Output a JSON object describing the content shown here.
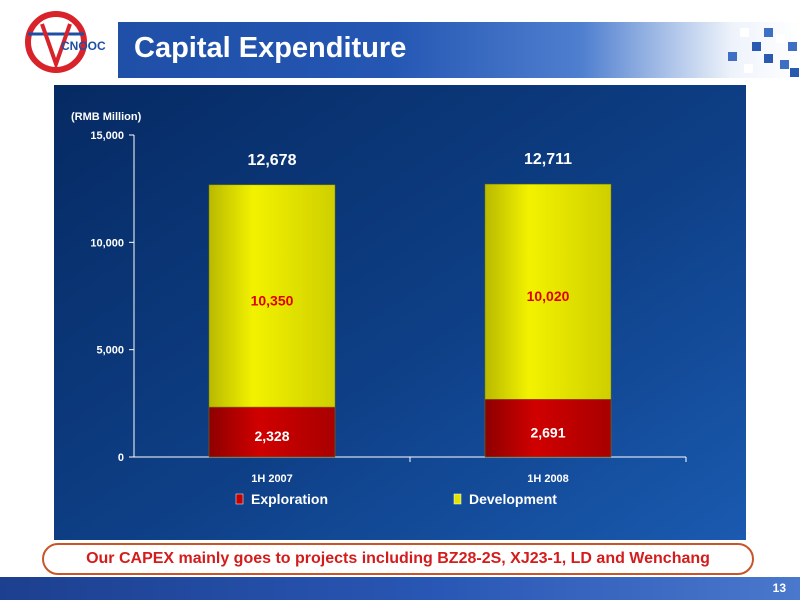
{
  "page": {
    "title": "Capital Expenditure",
    "footnote": "Our CAPEX mainly goes to projects including BZ28-2S, XJ23-1, LD and Wenchang",
    "page_number": "13",
    "logo_text": "CNOOC"
  },
  "colors": {
    "exploration": "#c40000",
    "development": "#e3e300",
    "total_label": "#ffffff",
    "segment_label": "#e00000",
    "axis": "#ffffff"
  },
  "chart_data": {
    "type": "bar",
    "stacked": true,
    "unit_label": "(RMB Million)",
    "categories": [
      "1H 2007",
      "1H 2008"
    ],
    "series": [
      {
        "name": "Exploration",
        "values": [
          2328,
          2691
        ]
      },
      {
        "name": "Development",
        "values": [
          10350,
          10020
        ]
      }
    ],
    "totals": [
      12678,
      12711
    ],
    "segment_labels": [
      [
        "2,328",
        "10,350"
      ],
      [
        "2,691",
        "10,020"
      ]
    ],
    "total_labels": [
      "12,678",
      "12,711"
    ],
    "ylim": [
      0,
      15000
    ],
    "y_ticks": [
      0,
      5000,
      10000,
      15000
    ],
    "y_tick_labels": [
      "0",
      "5,000",
      "10,000",
      "15,000"
    ],
    "grid": false,
    "legend": "bottom"
  }
}
